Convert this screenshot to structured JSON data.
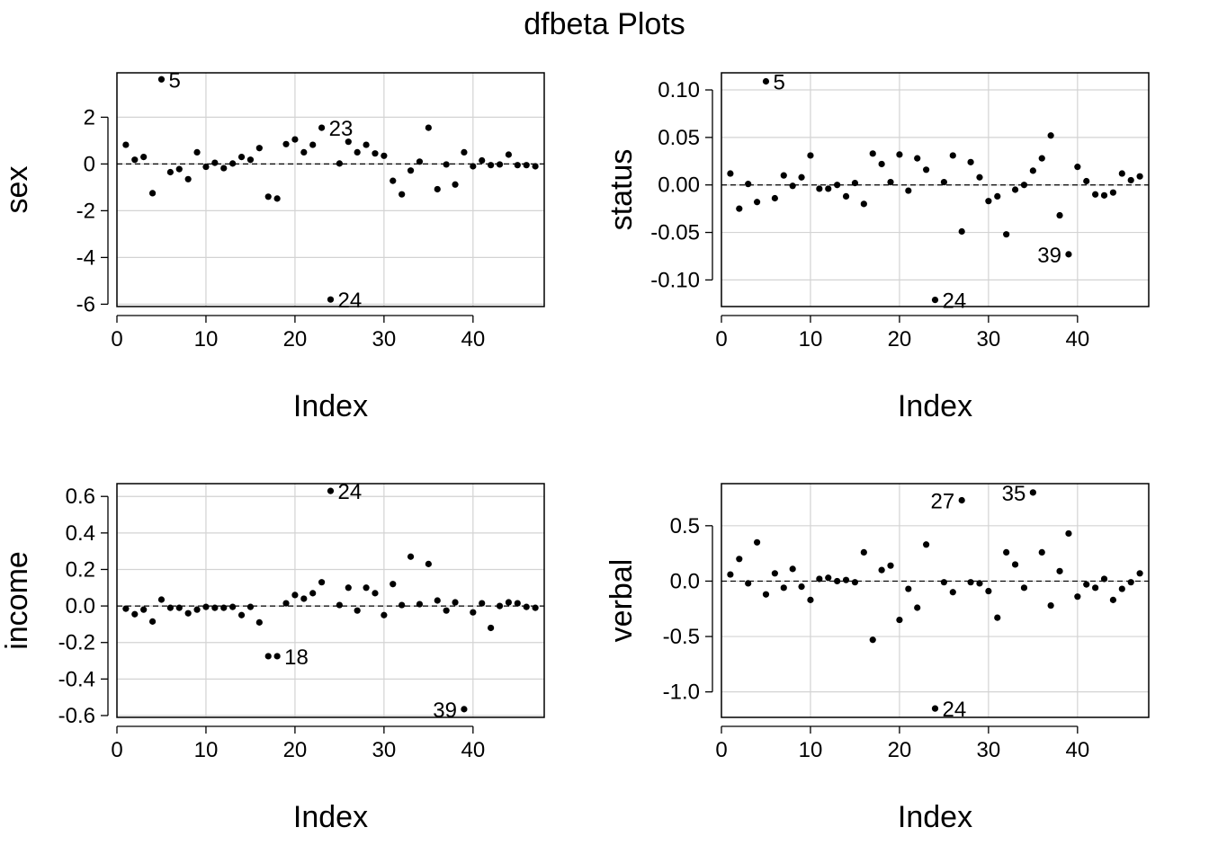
{
  "title": "dfbeta Plots",
  "chart_data": [
    {
      "type": "scatter",
      "xlabel": "Index",
      "ylabel": "sex",
      "xlim": [
        0,
        48
      ],
      "ylim": [
        -6.1,
        3.9
      ],
      "xticks": [
        0,
        10,
        20,
        30,
        40
      ],
      "yticks": [
        2,
        0,
        -2,
        -4,
        -6
      ],
      "ytick_labels": [
        "2",
        "0",
        "-2",
        "-4",
        "-6"
      ],
      "grid": true,
      "reference_line": 0,
      "y": [
        0.82,
        0.18,
        0.3,
        -1.25,
        3.62,
        -0.35,
        -0.22,
        -0.65,
        0.5,
        -0.12,
        0.05,
        -0.18,
        0.02,
        0.3,
        0.18,
        0.68,
        -1.4,
        -1.48,
        0.85,
        1.05,
        0.5,
        0.82,
        1.55,
        -5.8,
        0.02,
        0.95,
        0.5,
        0.82,
        0.45,
        0.35,
        -0.72,
        -1.3,
        -0.28,
        0.1,
        1.55,
        -1.08,
        -0.02,
        -0.88,
        0.5,
        -0.1,
        0.15,
        -0.05,
        -0.02,
        0.4,
        -0.05,
        -0.05,
        -0.1
      ],
      "annotations": [
        {
          "index": 5,
          "label": "5",
          "side": "right"
        },
        {
          "index": 23,
          "label": "23",
          "side": "right"
        },
        {
          "index": 24,
          "label": "24",
          "side": "right"
        }
      ]
    },
    {
      "type": "scatter",
      "xlabel": "Index",
      "ylabel": "status",
      "xlim": [
        0,
        48
      ],
      "ylim": [
        -0.128,
        0.118
      ],
      "xticks": [
        0,
        10,
        20,
        30,
        40
      ],
      "yticks": [
        0.1,
        0.05,
        0,
        -0.05,
        -0.1
      ],
      "ytick_labels": [
        "0.10",
        "0.05",
        "0.00",
        "-0.05",
        "-0.10"
      ],
      "grid": true,
      "reference_line": 0,
      "y": [
        0.012,
        -0.025,
        0.001,
        -0.018,
        0.109,
        -0.014,
        0.01,
        -0.001,
        0.008,
        0.031,
        -0.004,
        -0.004,
        0.0,
        -0.012,
        0.002,
        -0.02,
        0.033,
        0.022,
        0.003,
        0.032,
        -0.006,
        0.028,
        0.016,
        -0.121,
        0.003,
        0.031,
        -0.049,
        0.024,
        0.008,
        -0.017,
        -0.012,
        -0.052,
        -0.005,
        0.0,
        0.015,
        0.028,
        0.052,
        -0.032,
        -0.073,
        0.019,
        0.004,
        -0.01,
        -0.011,
        -0.008,
        0.012,
        0.005,
        0.009
      ],
      "annotations": [
        {
          "index": 5,
          "label": "5",
          "side": "right"
        },
        {
          "index": 24,
          "label": "24",
          "side": "right"
        },
        {
          "index": 39,
          "label": "39",
          "side": "left"
        }
      ]
    },
    {
      "type": "scatter",
      "xlabel": "Index",
      "ylabel": "income",
      "xlim": [
        0,
        48
      ],
      "ylim": [
        -0.61,
        0.67
      ],
      "xticks": [
        0,
        10,
        20,
        30,
        40
      ],
      "yticks": [
        0.6,
        0.4,
        0.2,
        0,
        -0.2,
        -0.4,
        -0.6
      ],
      "ytick_labels": [
        "0.6",
        "0.4",
        "0.2",
        "0.0",
        "-0.2",
        "-0.4",
        "-0.6"
      ],
      "grid": true,
      "reference_line": 0,
      "y": [
        -0.015,
        -0.045,
        -0.02,
        -0.085,
        0.035,
        -0.01,
        -0.01,
        -0.04,
        -0.02,
        -0.005,
        -0.01,
        -0.01,
        -0.005,
        -0.05,
        -0.005,
        -0.09,
        -0.275,
        -0.275,
        0.015,
        0.06,
        0.04,
        0.07,
        0.13,
        0.63,
        0.005,
        0.1,
        -0.025,
        0.1,
        0.07,
        -0.05,
        0.12,
        0.005,
        0.27,
        0.01,
        0.23,
        0.03,
        -0.025,
        0.02,
        -0.565,
        -0.035,
        0.015,
        -0.12,
        0.0,
        0.02,
        0.015,
        -0.005,
        -0.01
      ],
      "annotations": [
        {
          "index": 18,
          "label": "18",
          "side": "right"
        },
        {
          "index": 24,
          "label": "24",
          "side": "right"
        },
        {
          "index": 39,
          "label": "39",
          "side": "left"
        }
      ]
    },
    {
      "type": "scatter",
      "xlabel": "Index",
      "ylabel": "verbal",
      "xlim": [
        0,
        48
      ],
      "ylim": [
        -1.23,
        0.88
      ],
      "xticks": [
        0,
        10,
        20,
        30,
        40
      ],
      "yticks": [
        0.5,
        0,
        -0.5,
        -1
      ],
      "ytick_labels": [
        "0.5",
        "0.0",
        "-0.5",
        "-1.0"
      ],
      "grid": true,
      "reference_line": 0,
      "y": [
        0.06,
        0.2,
        -0.02,
        0.35,
        -0.12,
        0.07,
        -0.06,
        0.11,
        -0.05,
        -0.17,
        0.02,
        0.03,
        0.0,
        0.01,
        -0.01,
        0.26,
        -0.53,
        0.1,
        0.14,
        -0.35,
        -0.07,
        -0.24,
        0.33,
        -1.15,
        -0.01,
        -0.1,
        0.73,
        -0.01,
        -0.02,
        -0.09,
        -0.33,
        0.26,
        0.15,
        -0.06,
        0.8,
        0.26,
        -0.22,
        0.09,
        0.43,
        -0.14,
        -0.03,
        -0.06,
        0.02,
        -0.17,
        -0.07,
        -0.01,
        0.07
      ],
      "annotations": [
        {
          "index": 24,
          "label": "24",
          "side": "right"
        },
        {
          "index": 27,
          "label": "27",
          "side": "left"
        },
        {
          "index": 35,
          "label": "35",
          "side": "left"
        }
      ]
    }
  ]
}
